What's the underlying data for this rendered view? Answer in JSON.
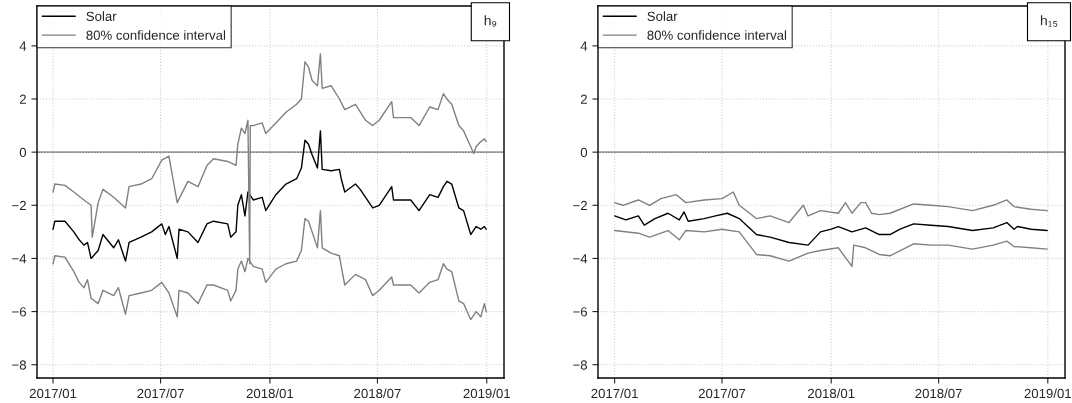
{
  "chart_data": [
    {
      "type": "line",
      "title": "h₉",
      "legend": "top left",
      "grid": true,
      "xlim": [
        "2016-12-05",
        "2019-01-30"
      ],
      "ylim": [
        -8.5,
        5.5
      ],
      "xticks": [
        {
          "value": "2017-01-01",
          "label": "2017/01"
        },
        {
          "value": "2017-07-01",
          "label": "2017/07"
        },
        {
          "value": "2018-01-01",
          "label": "2018/01"
        },
        {
          "value": "2018-07-01",
          "label": "2018/07"
        },
        {
          "value": "2019-01-01",
          "label": "2019/01"
        }
      ],
      "yticks": [
        -8,
        -6,
        -4,
        -2,
        0,
        2,
        4
      ],
      "ref_lines": [
        {
          "axis": "y",
          "value": 0,
          "color": "#595959"
        }
      ],
      "series": [
        {
          "name": "Solar",
          "color": "#000000",
          "x": [
            "2017-01-01",
            "2017-01-04",
            "2017-01-21",
            "2017-02-05",
            "2017-02-14",
            "2017-02-22",
            "2017-02-28",
            "2017-03-06",
            "2017-03-18",
            "2017-03-26",
            "2017-04-13",
            "2017-04-21",
            "2017-05-03",
            "2017-05-09",
            "2017-05-29",
            "2017-06-16",
            "2017-07-03",
            "2017-07-09",
            "2017-07-15",
            "2017-07-29",
            "2017-08-01",
            "2017-08-16",
            "2017-09-02",
            "2017-09-17",
            "2017-09-28",
            "2017-10-22",
            "2017-10-27",
            "2017-11-05",
            "2017-11-08",
            "2017-11-14",
            "2017-11-20",
            "2017-11-25",
            "2017-12-04",
            "2017-12-19",
            "2017-12-25",
            "2018-01-11",
            "2018-01-28",
            "2018-02-15",
            "2018-02-23",
            "2018-03-01",
            "2018-03-07",
            "2018-03-13",
            "2018-03-22",
            "2018-03-27",
            "2018-03-30",
            "2018-04-14",
            "2018-04-28",
            "2018-05-01",
            "2018-05-07",
            "2018-05-25",
            "2018-06-02",
            "2018-06-11",
            "2018-06-23",
            "2018-07-04",
            "2018-07-25",
            "2018-07-28",
            "2018-08-26",
            "2018-09-09",
            "2018-09-27",
            "2018-10-11",
            "2018-10-20",
            "2018-10-26",
            "2018-11-03",
            "2018-11-15",
            "2018-11-23",
            "2018-12-05",
            "2018-12-14",
            "2018-12-22",
            "2018-12-28",
            "2018-12-31"
          ],
          "values": [
            -2.9,
            -2.6,
            -2.6,
            -3.0,
            -3.3,
            -3.5,
            -3.4,
            -4.0,
            -3.7,
            -3.1,
            -3.6,
            -3.3,
            -4.1,
            -3.4,
            -3.2,
            -3.0,
            -2.7,
            -3.1,
            -2.8,
            -4.0,
            -2.9,
            -3.0,
            -3.4,
            -2.7,
            -2.6,
            -2.7,
            -3.2,
            -3.0,
            -2.0,
            -1.6,
            -2.4,
            -1.5,
            -1.8,
            -1.7,
            -2.2,
            -1.6,
            -1.2,
            -1.0,
            -0.6,
            0.45,
            0.3,
            -0.1,
            -0.6,
            0.8,
            -0.65,
            -0.7,
            -0.65,
            -1.0,
            -1.5,
            -1.2,
            -1.4,
            -1.7,
            -2.1,
            -2.0,
            -1.3,
            -1.8,
            -1.8,
            -2.2,
            -1.6,
            -1.7,
            -1.3,
            -1.1,
            -1.2,
            -2.1,
            -2.2,
            -3.1,
            -2.8,
            -2.9,
            -2.8,
            -2.9
          ]
        },
        {
          "name": "80% confidence interval",
          "color": "#808080",
          "x": [
            "2017-01-01",
            "2017-01-04",
            "2017-01-21",
            "2017-02-05",
            "2017-02-22",
            "2017-03-06",
            "2017-03-08",
            "2017-03-18",
            "2017-03-26",
            "2017-04-13",
            "2017-05-03",
            "2017-05-09",
            "2017-05-29",
            "2017-06-16",
            "2017-07-03",
            "2017-07-15",
            "2017-07-29",
            "2017-08-16",
            "2017-09-02",
            "2017-09-17",
            "2017-09-28",
            "2017-10-22",
            "2017-11-05",
            "2017-11-08",
            "2017-11-14",
            "2017-11-20",
            "2017-11-25",
            "2017-11-28",
            "2017-11-29",
            "2017-12-04",
            "2017-12-19",
            "2017-12-25",
            "2018-01-11",
            "2018-01-28",
            "2018-02-15",
            "2018-02-23",
            "2018-03-01",
            "2018-03-07",
            "2018-03-13",
            "2018-03-22",
            "2018-03-27",
            "2018-03-30",
            "2018-04-14",
            "2018-04-28",
            "2018-05-07",
            "2018-05-25",
            "2018-06-11",
            "2018-06-23",
            "2018-07-04",
            "2018-07-25",
            "2018-07-28",
            "2018-08-26",
            "2018-09-09",
            "2018-09-27",
            "2018-10-11",
            "2018-10-20",
            "2018-10-26",
            "2018-11-03",
            "2018-11-15",
            "2018-11-23",
            "2018-12-05",
            "2018-12-10",
            "2018-12-14",
            "2018-12-22",
            "2018-12-28",
            "2018-12-31"
          ],
          "values": [
            -1.5,
            -1.2,
            -1.25,
            -1.5,
            -1.8,
            -2.0,
            -3.2,
            -1.9,
            -1.4,
            -1.7,
            -2.1,
            -1.3,
            -1.2,
            -1.0,
            -0.3,
            -0.15,
            -1.9,
            -1.1,
            -1.3,
            -0.5,
            -0.25,
            -0.35,
            -0.5,
            0.3,
            0.9,
            0.7,
            1.2,
            -4.2,
            1.0,
            1.0,
            1.1,
            0.7,
            1.1,
            1.5,
            1.8,
            2.0,
            3.4,
            3.2,
            2.7,
            2.5,
            3.7,
            2.4,
            2.5,
            2.0,
            1.6,
            1.8,
            1.2,
            1.0,
            1.2,
            1.9,
            1.3,
            1.3,
            1.0,
            1.7,
            1.6,
            2.2,
            2.0,
            1.8,
            1.0,
            0.8,
            0.2,
            -0.05,
            0.2,
            0.4,
            0.5,
            0.4
          ]
        },
        {
          "color": "#808080",
          "x": [
            "2017-01-01",
            "2017-01-04",
            "2017-01-21",
            "2017-02-05",
            "2017-02-14",
            "2017-02-22",
            "2017-02-28",
            "2017-03-06",
            "2017-03-18",
            "2017-03-26",
            "2017-04-13",
            "2017-04-21",
            "2017-05-03",
            "2017-05-09",
            "2017-05-29",
            "2017-06-16",
            "2017-07-03",
            "2017-07-15",
            "2017-07-29",
            "2017-08-01",
            "2017-08-16",
            "2017-09-02",
            "2017-09-17",
            "2017-09-28",
            "2017-10-22",
            "2017-10-27",
            "2017-11-05",
            "2017-11-08",
            "2017-11-14",
            "2017-11-20",
            "2017-11-25",
            "2017-12-04",
            "2017-12-19",
            "2017-12-25",
            "2018-01-11",
            "2018-01-28",
            "2018-02-15",
            "2018-02-23",
            "2018-03-01",
            "2018-03-07",
            "2018-03-13",
            "2018-03-22",
            "2018-03-27",
            "2018-03-30",
            "2018-04-14",
            "2018-04-28",
            "2018-05-01",
            "2018-05-07",
            "2018-05-25",
            "2018-06-11",
            "2018-06-23",
            "2018-07-04",
            "2018-07-25",
            "2018-07-28",
            "2018-08-26",
            "2018-09-09",
            "2018-09-27",
            "2018-10-11",
            "2018-10-20",
            "2018-10-26",
            "2018-11-03",
            "2018-11-15",
            "2018-11-23",
            "2018-12-05",
            "2018-12-14",
            "2018-12-22",
            "2018-12-28",
            "2018-12-31"
          ],
          "values": [
            -4.2,
            -3.9,
            -3.95,
            -4.5,
            -4.9,
            -5.1,
            -4.8,
            -5.5,
            -5.7,
            -5.2,
            -5.4,
            -5.1,
            -6.1,
            -5.4,
            -5.3,
            -5.2,
            -4.9,
            -5.3,
            -6.2,
            -5.2,
            -5.3,
            -5.7,
            -5.0,
            -5.0,
            -5.2,
            -5.6,
            -5.2,
            -4.4,
            -4.1,
            -4.5,
            -4.0,
            -4.3,
            -4.4,
            -4.9,
            -4.4,
            -4.2,
            -4.1,
            -3.7,
            -2.5,
            -2.6,
            -3.0,
            -3.6,
            -2.2,
            -3.6,
            -3.8,
            -3.9,
            -4.3,
            -5.0,
            -4.6,
            -4.8,
            -5.4,
            -5.2,
            -4.7,
            -5.0,
            -5.0,
            -5.3,
            -4.9,
            -4.8,
            -4.2,
            -4.4,
            -4.5,
            -5.6,
            -5.7,
            -6.3,
            -6.0,
            -6.2,
            -5.7,
            -6.0
          ]
        }
      ]
    },
    {
      "type": "line",
      "title": "h₁₅",
      "legend": "top left",
      "grid": true,
      "xlim": [
        "2016-12-04",
        "2019-01-30"
      ],
      "ylim": [
        -8.5,
        5.5
      ],
      "xticks": [
        {
          "value": "2017-01-01",
          "label": "2017/01"
        },
        {
          "value": "2017-07-01",
          "label": "2017/07"
        },
        {
          "value": "2018-01-01",
          "label": "2018/01"
        },
        {
          "value": "2018-07-01",
          "label": "2018/07"
        },
        {
          "value": "2019-01-01",
          "label": "2019/01"
        }
      ],
      "yticks": [
        -8,
        -6,
        -4,
        -2,
        0,
        2,
        4
      ],
      "ref_lines": [
        {
          "axis": "y",
          "value": 0,
          "color": "#595959"
        }
      ],
      "series": [
        {
          "name": "Solar",
          "color": "#000000",
          "x": [
            "2017-01-01",
            "2017-01-20",
            "2017-02-10",
            "2017-02-20",
            "2017-03-10",
            "2017-04-01",
            "2017-04-20",
            "2017-04-28",
            "2017-05-05",
            "2017-06-01",
            "2017-06-20",
            "2017-07-10",
            "2017-07-30",
            "2017-08-28",
            "2017-09-20",
            "2017-10-22",
            "2017-11-23",
            "2017-12-14",
            "2018-01-01",
            "2018-01-13",
            "2018-02-05",
            "2018-02-28",
            "2018-03-23",
            "2018-04-10",
            "2018-04-27",
            "2018-05-20",
            "2018-06-18",
            "2018-07-17",
            "2018-08-27",
            "2018-10-01",
            "2018-10-24",
            "2018-11-05",
            "2018-11-11",
            "2018-12-04",
            "2018-12-31"
          ],
          "values": [
            -2.4,
            -2.55,
            -2.4,
            -2.75,
            -2.5,
            -2.3,
            -2.55,
            -2.25,
            -2.6,
            -2.5,
            -2.4,
            -2.3,
            -2.5,
            -3.1,
            -3.2,
            -3.4,
            -3.5,
            -3.0,
            -2.9,
            -2.8,
            -3.0,
            -2.85,
            -3.1,
            -3.1,
            -2.9,
            -2.7,
            -2.75,
            -2.8,
            -2.95,
            -2.85,
            -2.65,
            -2.9,
            -2.8,
            -2.9,
            -2.95
          ]
        },
        {
          "name": "80% confidence interval",
          "color": "#808080",
          "x": [
            "2017-01-01",
            "2017-01-15",
            "2017-02-10",
            "2017-03-01",
            "2017-03-20",
            "2017-04-15",
            "2017-05-01",
            "2017-06-01",
            "2017-07-01",
            "2017-07-20",
            "2017-07-30",
            "2017-08-28",
            "2017-09-20",
            "2017-10-22",
            "2017-11-15",
            "2017-11-23",
            "2017-12-14",
            "2018-01-13",
            "2018-01-25",
            "2018-02-05",
            "2018-02-20",
            "2018-02-28",
            "2018-03-10",
            "2018-03-23",
            "2018-04-10",
            "2018-05-20",
            "2018-06-18",
            "2018-07-17",
            "2018-08-27",
            "2018-10-01",
            "2018-10-24",
            "2018-11-05",
            "2018-12-04",
            "2018-12-31"
          ],
          "values": [
            -1.9,
            -2.0,
            -1.8,
            -2.0,
            -1.75,
            -1.6,
            -1.9,
            -1.8,
            -1.75,
            -1.5,
            -2.0,
            -2.5,
            -2.4,
            -2.65,
            -2.0,
            -2.4,
            -2.2,
            -2.3,
            -1.9,
            -2.3,
            -1.9,
            -1.9,
            -2.3,
            -2.35,
            -2.3,
            -1.95,
            -2.0,
            -2.05,
            -2.2,
            -2.0,
            -1.8,
            -2.05,
            -2.15,
            -2.2
          ]
        },
        {
          "color": "#808080",
          "x": [
            "2017-01-01",
            "2017-02-10",
            "2017-03-01",
            "2017-04-01",
            "2017-04-20",
            "2017-05-01",
            "2017-06-01",
            "2017-07-01",
            "2017-07-30",
            "2017-08-28",
            "2017-09-20",
            "2017-10-22",
            "2017-11-23",
            "2017-12-14",
            "2018-01-13",
            "2018-02-05",
            "2018-02-08",
            "2018-02-28",
            "2018-03-23",
            "2018-04-10",
            "2018-05-20",
            "2018-06-18",
            "2018-07-17",
            "2018-08-27",
            "2018-10-01",
            "2018-10-24",
            "2018-11-05",
            "2018-12-04",
            "2018-12-31"
          ],
          "values": [
            -2.95,
            -3.05,
            -3.2,
            -2.95,
            -3.3,
            -2.95,
            -3.0,
            -2.9,
            -3.0,
            -3.85,
            -3.9,
            -4.1,
            -3.8,
            -3.7,
            -3.6,
            -4.3,
            -3.5,
            -3.6,
            -3.85,
            -3.9,
            -3.45,
            -3.5,
            -3.5,
            -3.65,
            -3.5,
            -3.35,
            -3.55,
            -3.6,
            -3.65
          ]
        }
      ]
    }
  ]
}
